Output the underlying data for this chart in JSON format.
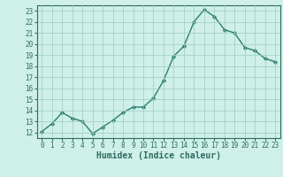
{
  "x": [
    0,
    1,
    2,
    3,
    4,
    5,
    6,
    7,
    8,
    9,
    10,
    11,
    12,
    13,
    14,
    15,
    16,
    17,
    18,
    19,
    20,
    21,
    22,
    23
  ],
  "y": [
    12.1,
    12.8,
    13.8,
    13.3,
    13.0,
    11.9,
    12.5,
    13.1,
    13.8,
    14.3,
    14.3,
    15.1,
    16.7,
    18.9,
    19.8,
    22.0,
    23.1,
    22.5,
    21.3,
    21.0,
    19.7,
    19.4,
    18.7,
    18.4
  ],
  "line_color": "#2e7d6e",
  "marker": "D",
  "marker_size": 2.2,
  "bg_color": "#cef0e8",
  "grid_color": "#9eccc4",
  "xlabel": "Humidex (Indice chaleur)",
  "ylim": [
    11.5,
    23.5
  ],
  "xlim": [
    -0.5,
    23.5
  ],
  "yticks": [
    12,
    13,
    14,
    15,
    16,
    17,
    18,
    19,
    20,
    21,
    22,
    23
  ],
  "xticks": [
    0,
    1,
    2,
    3,
    4,
    5,
    6,
    7,
    8,
    9,
    10,
    11,
    12,
    13,
    14,
    15,
    16,
    17,
    18,
    19,
    20,
    21,
    22,
    23
  ],
  "tick_color": "#2e6b60",
  "label_fontsize": 5.5,
  "xlabel_fontsize": 7.0,
  "linewidth": 1.0
}
